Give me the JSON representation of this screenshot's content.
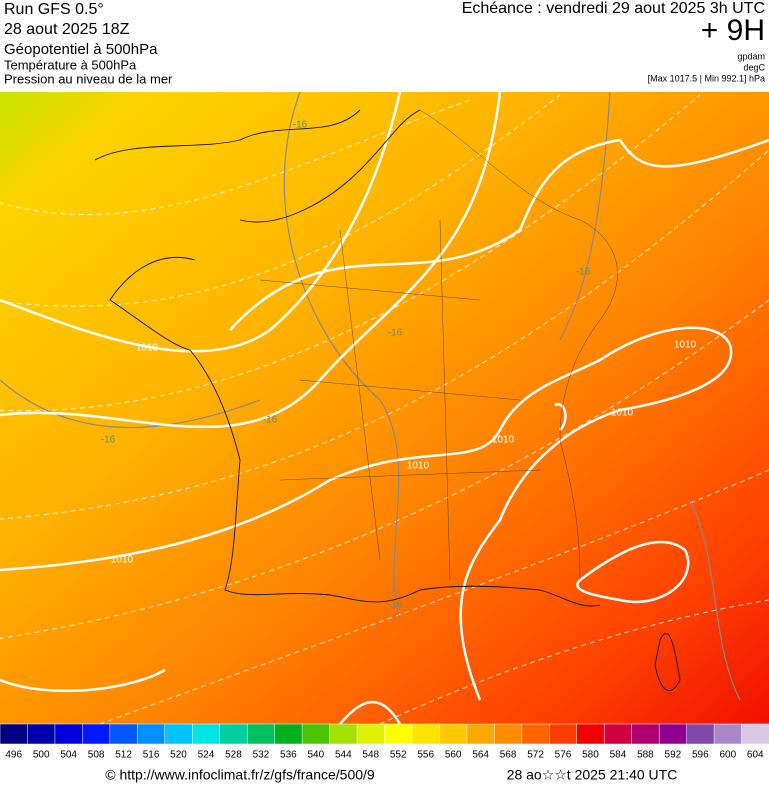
{
  "header": {
    "run": "Run GFS 0.5°",
    "run_date": "28 aout 2025 18Z",
    "field1": "Géopotentiel à 500hPa",
    "field2": "Température à 500hPa",
    "field3": "Pression au niveau de la mer",
    "echeance": "Echéance : vendredi 29 aout 2025 3h UTC",
    "lead": "+ 9H",
    "unit1": "gpdam",
    "unit2": "degC",
    "pressure_range": "[Max 1017.5 | Min 992.1] hPa"
  },
  "map": {
    "contour_labels": [
      "-16",
      "-16",
      "-16",
      "-16",
      "-16",
      "-16",
      "1010",
      "1010",
      "1010",
      "1010",
      "1010",
      "1010"
    ]
  },
  "colorbar": {
    "labels": [
      "496",
      "500",
      "504",
      "508",
      "512",
      "516",
      "520",
      "524",
      "528",
      "532",
      "536",
      "540",
      "544",
      "548",
      "552",
      "556",
      "560",
      "564",
      "568",
      "572",
      "576",
      "580",
      "584",
      "588",
      "592",
      "596",
      "600",
      "604"
    ],
    "colors": [
      "#000080",
      "#0000a8",
      "#0000d8",
      "#0018ff",
      "#0058ff",
      "#0090ff",
      "#00c4ff",
      "#00e4e4",
      "#00d0a0",
      "#00c060",
      "#00b020",
      "#48c400",
      "#a4e000",
      "#e0f000",
      "#ffff00",
      "#ffe400",
      "#ffc800",
      "#ffa800",
      "#ff8c00",
      "#ff6400",
      "#ff3c00",
      "#f00000",
      "#d00040",
      "#b00070",
      "#900090",
      "#8048a8",
      "#a888c8",
      "#d8c8e4"
    ]
  },
  "footer": {
    "source": "© http://www.infoclimat.fr/z/gfs/france/500/9",
    "timestamp": "28 ao☆☆t 2025 21:40 UTC"
  }
}
